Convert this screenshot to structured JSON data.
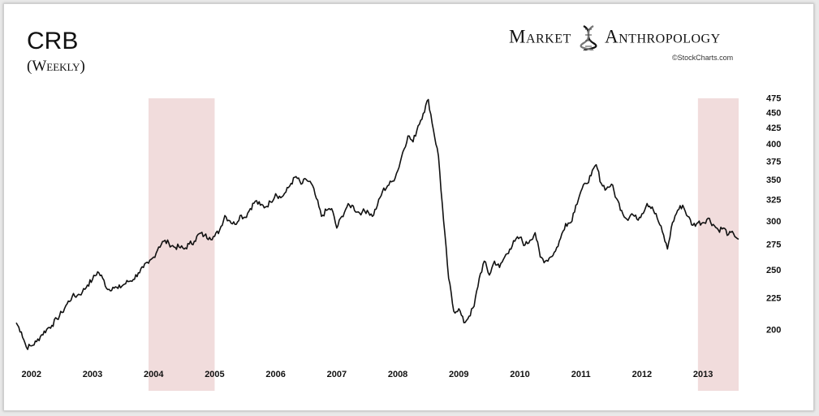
{
  "header": {
    "title": "CRB",
    "subtitle": "(Weekly)",
    "brand_left": "Market",
    "brand_right": "Anthropology",
    "credit": "©StockCharts.com"
  },
  "chart_data": {
    "type": "line",
    "title": "CRB",
    "subtitle": "(Weekly)",
    "xlabel": "",
    "ylabel": "",
    "y_scale": "log",
    "ylim": [
      180,
      480
    ],
    "xlim": [
      "2001-10",
      "2013-08"
    ],
    "grid": false,
    "y_ticks": [
      200,
      225,
      250,
      275,
      300,
      325,
      350,
      375,
      400,
      425,
      450,
      475
    ],
    "x_ticks": [
      {
        "label": "2002",
        "date": "2002-01"
      },
      {
        "label": "2003",
        "date": "2003-01"
      },
      {
        "label": "2004",
        "date": "2004-01"
      },
      {
        "label": "2005",
        "date": "2005-01"
      },
      {
        "label": "2006",
        "date": "2006-01"
      },
      {
        "label": "2007",
        "date": "2007-01"
      },
      {
        "label": "2008",
        "date": "2008-01"
      },
      {
        "label": "2009",
        "date": "2009-01"
      },
      {
        "label": "2010",
        "date": "2010-01"
      },
      {
        "label": "2011",
        "date": "2011-01"
      },
      {
        "label": "2012",
        "date": "2012-01"
      },
      {
        "label": "2013",
        "date": "2013-01"
      }
    ],
    "shaded_periods": [
      {
        "start": "2003-12",
        "end": "2005-01"
      },
      {
        "start": "2012-12",
        "end": "2013-08"
      }
    ],
    "series": [
      {
        "color": "#111111",
        "points": [
          [
            "2001-10",
            205
          ],
          [
            "2001-11",
            198
          ],
          [
            "2001-12",
            187
          ],
          [
            "2002-01",
            188
          ],
          [
            "2002-02",
            191
          ],
          [
            "2002-03",
            196
          ],
          [
            "2002-04",
            200
          ],
          [
            "2002-05",
            203
          ],
          [
            "2002-06",
            208
          ],
          [
            "2002-07",
            213
          ],
          [
            "2002-08",
            220
          ],
          [
            "2002-09",
            226
          ],
          [
            "2002-10",
            227
          ],
          [
            "2002-11",
            230
          ],
          [
            "2002-12",
            236
          ],
          [
            "2003-01",
            241
          ],
          [
            "2003-02",
            248
          ],
          [
            "2003-03",
            242
          ],
          [
            "2003-04",
            232
          ],
          [
            "2003-05",
            234
          ],
          [
            "2003-06",
            233
          ],
          [
            "2003-07",
            236
          ],
          [
            "2003-08",
            239
          ],
          [
            "2003-09",
            241
          ],
          [
            "2003-10",
            247
          ],
          [
            "2003-11",
            252
          ],
          [
            "2003-12",
            256
          ],
          [
            "2004-01",
            262
          ],
          [
            "2004-02",
            272
          ],
          [
            "2004-03",
            278
          ],
          [
            "2004-04",
            276
          ],
          [
            "2004-05",
            272
          ],
          [
            "2004-06",
            272
          ],
          [
            "2004-07",
            270
          ],
          [
            "2004-08",
            275
          ],
          [
            "2004-09",
            278
          ],
          [
            "2004-10",
            286
          ],
          [
            "2004-11",
            284
          ],
          [
            "2004-12",
            282
          ],
          [
            "2005-01",
            283
          ],
          [
            "2005-02",
            290
          ],
          [
            "2005-03",
            306
          ],
          [
            "2005-04",
            300
          ],
          [
            "2005-05",
            296
          ],
          [
            "2005-06",
            306
          ],
          [
            "2005-07",
            304
          ],
          [
            "2005-08",
            314
          ],
          [
            "2005-09",
            323
          ],
          [
            "2005-10",
            318
          ],
          [
            "2005-11",
            316
          ],
          [
            "2005-12",
            322
          ],
          [
            "2006-01",
            332
          ],
          [
            "2006-02",
            327
          ],
          [
            "2006-03",
            334
          ],
          [
            "2006-04",
            345
          ],
          [
            "2006-05",
            354
          ],
          [
            "2006-06",
            344
          ],
          [
            "2006-07",
            350
          ],
          [
            "2006-08",
            345
          ],
          [
            "2006-09",
            326
          ],
          [
            "2006-10",
            305
          ],
          [
            "2006-11",
            312
          ],
          [
            "2006-12",
            314
          ],
          [
            "2007-01",
            292
          ],
          [
            "2007-02",
            305
          ],
          [
            "2007-03",
            316
          ],
          [
            "2007-04",
            318
          ],
          [
            "2007-05",
            310
          ],
          [
            "2007-06",
            310
          ],
          [
            "2007-07",
            312
          ],
          [
            "2007-08",
            305
          ],
          [
            "2007-09",
            318
          ],
          [
            "2007-10",
            335
          ],
          [
            "2007-11",
            342
          ],
          [
            "2007-12",
            348
          ],
          [
            "2008-01",
            362
          ],
          [
            "2008-02",
            388
          ],
          [
            "2008-03",
            412
          ],
          [
            "2008-04",
            403
          ],
          [
            "2008-05",
            428
          ],
          [
            "2008-06",
            448
          ],
          [
            "2008-07",
            472
          ],
          [
            "2008-08",
            422
          ],
          [
            "2008-09",
            382
          ],
          [
            "2008-10",
            300
          ],
          [
            "2008-11",
            242
          ],
          [
            "2008-12",
            214
          ],
          [
            "2009-01",
            216
          ],
          [
            "2009-02",
            205
          ],
          [
            "2009-03",
            210
          ],
          [
            "2009-04",
            218
          ],
          [
            "2009-05",
            242
          ],
          [
            "2009-06",
            258
          ],
          [
            "2009-07",
            245
          ],
          [
            "2009-08",
            258
          ],
          [
            "2009-09",
            252
          ],
          [
            "2009-10",
            262
          ],
          [
            "2009-11",
            270
          ],
          [
            "2009-12",
            278
          ],
          [
            "2010-01",
            282
          ],
          [
            "2010-02",
            274
          ],
          [
            "2010-03",
            279
          ],
          [
            "2010-04",
            287
          ],
          [
            "2010-05",
            262
          ],
          [
            "2010-06",
            258
          ],
          [
            "2010-07",
            262
          ],
          [
            "2010-08",
            268
          ],
          [
            "2010-09",
            281
          ],
          [
            "2010-10",
            297
          ],
          [
            "2010-11",
            298
          ],
          [
            "2010-12",
            318
          ],
          [
            "2011-01",
            335
          ],
          [
            "2011-02",
            345
          ],
          [
            "2011-03",
            355
          ],
          [
            "2011-04",
            370
          ],
          [
            "2011-05",
            345
          ],
          [
            "2011-06",
            338
          ],
          [
            "2011-07",
            344
          ],
          [
            "2011-08",
            326
          ],
          [
            "2011-09",
            312
          ],
          [
            "2011-10",
            302
          ],
          [
            "2011-11",
            308
          ],
          [
            "2011-12",
            302
          ],
          [
            "2012-01",
            308
          ],
          [
            "2012-02",
            320
          ],
          [
            "2012-03",
            316
          ],
          [
            "2012-04",
            303
          ],
          [
            "2012-05",
            288
          ],
          [
            "2012-06",
            270
          ],
          [
            "2012-07",
            298
          ],
          [
            "2012-08",
            312
          ],
          [
            "2012-09",
            318
          ],
          [
            "2012-10",
            305
          ],
          [
            "2012-11",
            295
          ],
          [
            "2012-12",
            298
          ],
          [
            "2013-01",
            298
          ],
          [
            "2013-02",
            303
          ],
          [
            "2013-03",
            296
          ],
          [
            "2013-04",
            290
          ],
          [
            "2013-05",
            292
          ],
          [
            "2013-06",
            285
          ],
          [
            "2013-07",
            286
          ],
          [
            "2013-08",
            280
          ]
        ]
      }
    ]
  }
}
